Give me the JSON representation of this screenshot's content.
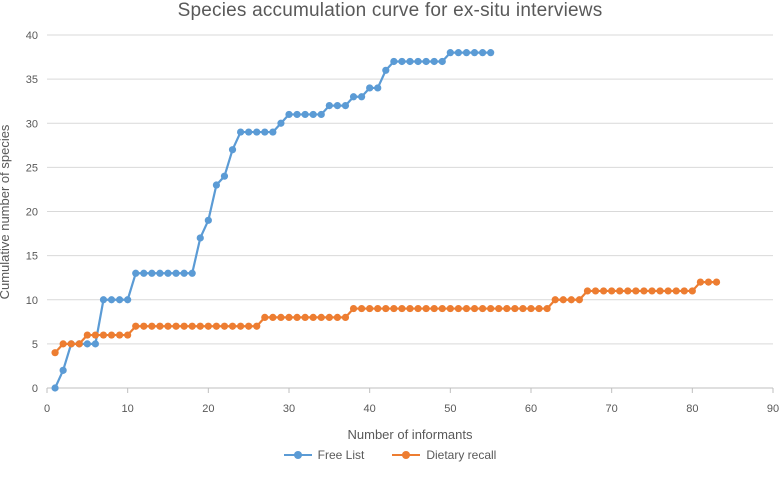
{
  "chart_data": {
    "type": "line",
    "title": "Species accumulation curve for ex-situ interviews",
    "xlabel": "Number of informants",
    "ylabel": "Cumulative number of species",
    "xlim": [
      0,
      90
    ],
    "ylim": [
      0,
      40
    ],
    "x_ticks": [
      "0",
      "10",
      "20",
      "30",
      "40",
      "50",
      "60",
      "70",
      "80",
      "90"
    ],
    "y_ticks": [
      "0",
      "5",
      "10",
      "15",
      "20",
      "25",
      "30",
      "35",
      "40"
    ],
    "grid": "horizontal",
    "legend_position": "bottom",
    "series": [
      {
        "name": "Free List",
        "color": "#5B9BD5",
        "x": [
          1,
          2,
          3,
          4,
          5,
          6,
          7,
          8,
          9,
          10,
          11,
          12,
          13,
          14,
          15,
          16,
          17,
          18,
          19,
          20,
          21,
          22,
          23,
          24,
          25,
          26,
          27,
          28,
          29,
          30,
          31,
          32,
          33,
          34,
          35,
          36,
          37,
          38,
          39,
          40,
          41,
          42,
          43,
          44,
          45,
          46,
          47,
          48,
          49,
          50,
          51,
          52,
          53,
          54,
          55
        ],
        "values": [
          0,
          2,
          5,
          5,
          5,
          5,
          10,
          10,
          10,
          10,
          13,
          13,
          13,
          13,
          13,
          13,
          13,
          13,
          17,
          19,
          23,
          24,
          27,
          29,
          29,
          29,
          29,
          29,
          30,
          31,
          31,
          31,
          31,
          31,
          32,
          32,
          32,
          33,
          33,
          34,
          34,
          36,
          37,
          37,
          37,
          37,
          37,
          37,
          37,
          38,
          38,
          38,
          38,
          38,
          38
        ]
      },
      {
        "name": "Dietary recall",
        "color": "#ED7D31",
        "x": [
          1,
          2,
          3,
          4,
          5,
          6,
          7,
          8,
          9,
          10,
          11,
          12,
          13,
          14,
          15,
          16,
          17,
          18,
          19,
          20,
          21,
          22,
          23,
          24,
          25,
          26,
          27,
          28,
          29,
          30,
          31,
          32,
          33,
          34,
          35,
          36,
          37,
          38,
          39,
          40,
          41,
          42,
          43,
          44,
          45,
          46,
          47,
          48,
          49,
          50,
          51,
          52,
          53,
          54,
          55,
          56,
          57,
          58,
          59,
          60,
          61,
          62,
          63,
          64,
          65,
          66,
          67,
          68,
          69,
          70,
          71,
          72,
          73,
          74,
          75,
          76,
          77,
          78,
          79,
          80,
          81,
          82,
          83
        ],
        "values": [
          4,
          5,
          5,
          5,
          6,
          6,
          6,
          6,
          6,
          6,
          7,
          7,
          7,
          7,
          7,
          7,
          7,
          7,
          7,
          7,
          7,
          7,
          7,
          7,
          7,
          7,
          8,
          8,
          8,
          8,
          8,
          8,
          8,
          8,
          8,
          8,
          8,
          9,
          9,
          9,
          9,
          9,
          9,
          9,
          9,
          9,
          9,
          9,
          9,
          9,
          9,
          9,
          9,
          9,
          9,
          9,
          9,
          9,
          9,
          9,
          9,
          9,
          10,
          10,
          10,
          10,
          11,
          11,
          11,
          11,
          11,
          11,
          11,
          11,
          11,
          11,
          11,
          11,
          11,
          11,
          12,
          12,
          12
        ]
      }
    ]
  }
}
